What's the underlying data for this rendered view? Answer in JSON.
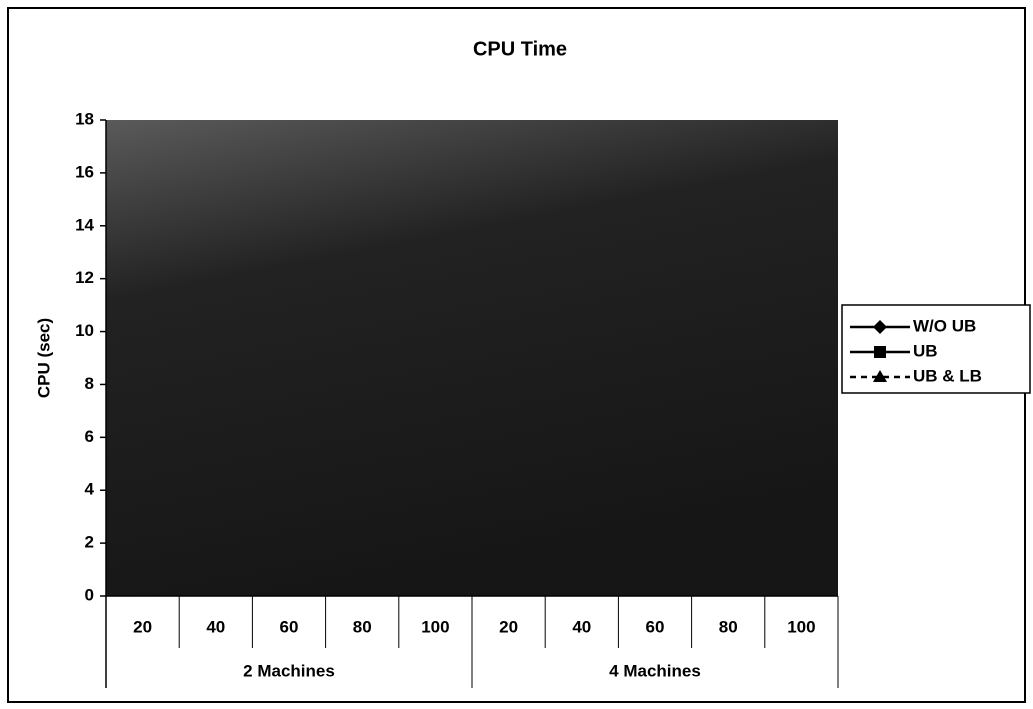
{
  "chart_data": {
    "type": "line",
    "title": "CPU Time",
    "y_label": "CPU (sec)",
    "categories": [
      "20",
      "40",
      "60",
      "80",
      "100",
      "20",
      "40",
      "60",
      "80",
      "100"
    ],
    "groups": [
      {
        "name": "2 Machines",
        "count": 5
      },
      {
        "name": "4 Machines",
        "count": 5
      }
    ],
    "series": [
      {
        "name": "W/O UB",
        "color": "#000000",
        "marker": "diamond",
        "dash": false,
        "values": [
          null,
          null,
          null,
          null,
          null,
          null,
          null,
          null,
          null,
          null
        ]
      },
      {
        "name": "UB",
        "color": "#000000",
        "marker": "square",
        "dash": false,
        "values": [
          null,
          null,
          null,
          null,
          null,
          null,
          null,
          null,
          null,
          null
        ]
      },
      {
        "name": "UB & LB",
        "color": "#000000",
        "marker": "triangle",
        "dash": true,
        "values": [
          null,
          null,
          null,
          null,
          null,
          null,
          null,
          null,
          null,
          null
        ]
      }
    ],
    "ylim": [
      0,
      18
    ],
    "yticks": [
      0,
      2,
      4,
      6,
      8,
      10,
      12,
      14,
      16,
      18
    ],
    "legend": "right"
  }
}
